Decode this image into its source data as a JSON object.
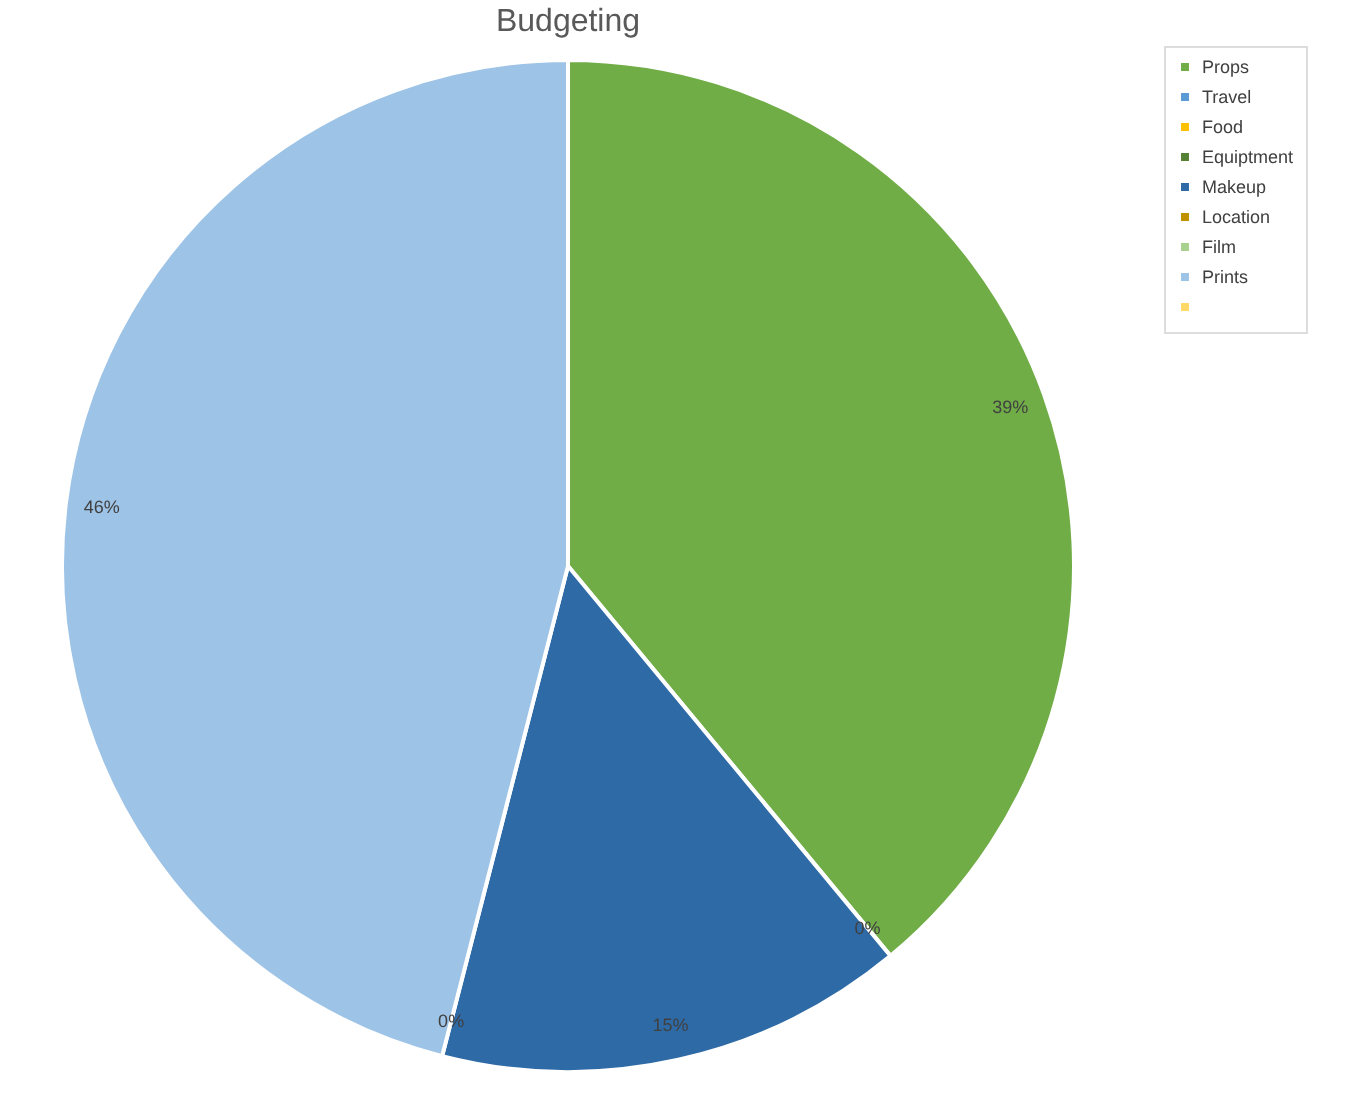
{
  "chart_data": {
    "type": "pie",
    "title": "Budgeting",
    "categories": [
      "Props",
      "Travel",
      "Food",
      "Equiptment",
      "Makeup",
      "Location",
      "Film",
      "Prints",
      null
    ],
    "values": [
      39,
      0,
      0,
      0,
      15,
      0,
      0,
      46,
      0
    ],
    "value_labels": [
      "39%",
      "0%",
      null,
      null,
      "15%",
      "0%",
      null,
      "46%",
      null
    ],
    "colors": [
      "#70ad47",
      "#5b9bd5",
      "#ffc000",
      "#548235",
      "#2e6aa6",
      "#c09000",
      "#a9d18e",
      "#9dc3e6",
      "#ffd966"
    ],
    "legend": "right"
  }
}
